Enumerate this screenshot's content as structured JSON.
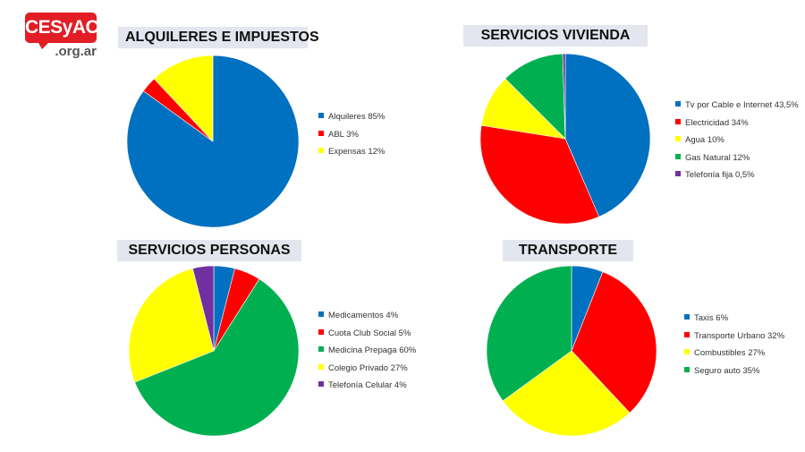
{
  "logo": {
    "main": "CESyAC",
    "sub": ".org.ar"
  },
  "colors": {
    "blue": "#0070c0",
    "red": "#ff0000",
    "yellow": "#ffff00",
    "green": "#00b050",
    "purple": "#7030a0"
  },
  "chart_data": [
    {
      "type": "pie",
      "title": "ALQUILERES E IMPUESTOS",
      "categories": [
        "Alquileres",
        "ABL",
        "Expensas"
      ],
      "values": [
        85,
        3,
        12
      ],
      "colors": [
        "#0070c0",
        "#ff0000",
        "#ffff00"
      ],
      "legend_labels": [
        "Alquileres 85%",
        "ABL 3%",
        "Expensas 12%"
      ],
      "legend": "right"
    },
    {
      "type": "pie",
      "title": "SERVICIOS  VIVIENDA",
      "categories": [
        "Tv por Cable e Internet",
        "Electricidad",
        "Agua",
        "Gas Natural",
        "Telefonía fija"
      ],
      "values": [
        43.5,
        34,
        10,
        12,
        0.5
      ],
      "colors": [
        "#0070c0",
        "#ff0000",
        "#ffff00",
        "#00b050",
        "#7030a0"
      ],
      "legend_labels": [
        "Tv por Cable e Internet 43,5%",
        "Electricidad 34%",
        "Agua 10%",
        "Gas Natural 12%",
        "Telefonía fija 0,5%"
      ],
      "legend": "right"
    },
    {
      "type": "pie",
      "title": "SERVICIOS PERSONAS",
      "categories": [
        "Medicamentos",
        "Cuota Club Social",
        "Medicina Prepaga",
        "Colegio Privado",
        "Telefonía Celular"
      ],
      "values": [
        4,
        5,
        60,
        27,
        4
      ],
      "colors": [
        "#0070c0",
        "#ff0000",
        "#00b050",
        "#ffff00",
        "#7030a0"
      ],
      "legend_labels": [
        "Medicamentos 4%",
        "Cuota Club Social 5%",
        "Medicina Prepaga 60%",
        "Colegio Privado 27%",
        "Telefonía Celular 4%"
      ],
      "legend": "right"
    },
    {
      "type": "pie",
      "title": "TRANSPORTE",
      "categories": [
        "Taxis",
        "Transporte Urbano",
        "Combustibles",
        "Seguro auto"
      ],
      "values": [
        6,
        32,
        27,
        35
      ],
      "colors": [
        "#0070c0",
        "#ff0000",
        "#ffff00",
        "#00b050"
      ],
      "legend_labels": [
        "Taxis 6%",
        "Transporte Urbano 32%",
        "Combustibles 27%",
        "Seguro auto 35%"
      ],
      "legend": "right"
    }
  ]
}
